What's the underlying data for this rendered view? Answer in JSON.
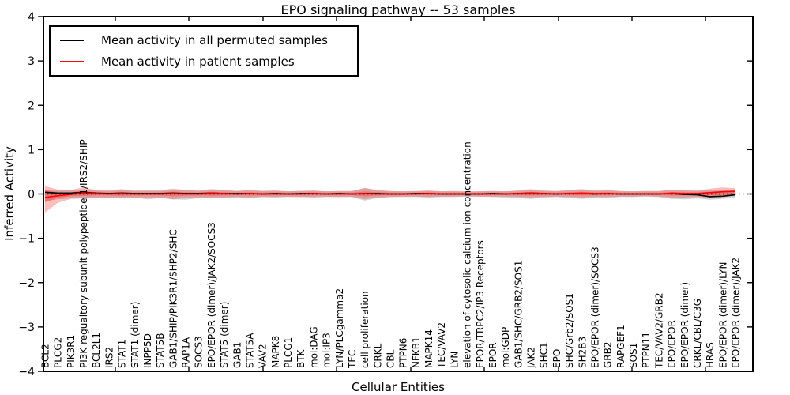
{
  "figure": {
    "background": "#ffffff"
  },
  "legend": {
    "position": "upper left",
    "entries": [
      {
        "label": "Mean activity in all permuted samples",
        "color": "#000000"
      },
      {
        "label": "Mean activity in patient samples",
        "color": "#ff0000"
      }
    ]
  },
  "chart_data": {
    "type": "line",
    "title": "EPO signaling pathway -- 53 samples",
    "xlabel": "Cellular Entities",
    "ylabel": "Inferred Activity",
    "ylim": [
      -4,
      4
    ],
    "yticks": [
      4,
      3,
      2,
      1,
      0,
      -1,
      -2,
      -3,
      -4
    ],
    "grid": false,
    "xtick_labels_inside_plot": true,
    "zero_line": {
      "style": "dotted",
      "color": "#000000",
      "value": 0
    },
    "entities": [
      "BCL2",
      "PLCG2",
      "PIK3R1",
      "PI3K regualtory subunit polypeptide 1/IRS2/SHIP",
      "BCL2L1",
      "IRS2",
      "STAT1",
      "STAT1 (dimer)",
      "INPP5D",
      "STAT5B",
      "GAB1/SHIP/PIK3R1/SHP2/SHC",
      "RAP1A",
      "SOCS3",
      "EPO/EPOR (dimer)/JAK2/SOCS3",
      "STAT5 (dimer)",
      "GAB1",
      "STAT5A",
      "VAV2",
      "MAPK8",
      "PLCG1",
      "BTK",
      "mol:DAG",
      "mol:IP3",
      "LYN/PLCgamma2",
      "TEC",
      "cell proliferation",
      "CRKL",
      "CBL",
      "PTPN6",
      "NFKB1",
      "MAPK14",
      "TEC/VAV2",
      "LYN",
      "elevation of cytosolic calcium ion concentration",
      "EPOR/TRPC2/IP3 Receptors",
      "EPOR",
      "mol:GDP",
      "GAB1/SHC/GRB2/SOS1",
      "JAK2",
      "SHC1",
      "EPO",
      "SHC/Grb2/SOS1",
      "SH2B3",
      "EPO/EPOR (dimer)/SOCS3",
      "GRB2",
      "RAPGEF1",
      "SOS1",
      "PTPN11",
      "TEC/VAV2/GRB2",
      "EPO/EPOR",
      "EPO/EPOR (dimer)",
      "CRKL/CBL/C3G",
      "HRAS",
      "EPO/EPOR (dimer)/LYN",
      "EPO/EPOR (dimer)/JAK2"
    ],
    "series": [
      {
        "name": "Mean activity in all permuted samples",
        "color": "#000000",
        "values": [
          0.04,
          0.02,
          0.02,
          0.04,
          0.02,
          0.01,
          0.02,
          0.01,
          0.01,
          0.01,
          0.02,
          0.01,
          0.01,
          0.02,
          0.01,
          0.01,
          0.01,
          0,
          0.01,
          0,
          0.01,
          0.01,
          0,
          0.01,
          0,
          0.01,
          0.01,
          0,
          0,
          0.01,
          0.01,
          0,
          0,
          0,
          0,
          0.01,
          0,
          0.01,
          0.02,
          0.01,
          0,
          0.01,
          0.01,
          0,
          0.01,
          0,
          0,
          0,
          0,
          0.01,
          -0.01,
          -0.02,
          -0.06,
          -0.05,
          -0.02
        ]
      },
      {
        "name": "Mean activity in patient samples",
        "color": "#ff0000",
        "values": [
          -0.08,
          -0.04,
          -0.01,
          0.03,
          0.01,
          0,
          0.01,
          0,
          0,
          0,
          0.01,
          0,
          0,
          0.02,
          0.01,
          0,
          0.01,
          0,
          0,
          0,
          0,
          0.01,
          0,
          0,
          0,
          0.01,
          0,
          0,
          0,
          0,
          0.01,
          0,
          0,
          0,
          0,
          0,
          0,
          0.01,
          0.02,
          0.01,
          0,
          0.01,
          0.02,
          0.01,
          0.01,
          0,
          0,
          0,
          0,
          0.02,
          0.01,
          0.01,
          0.03,
          0.05,
          0.06
        ]
      }
    ],
    "bands": [
      {
        "name": "permuted-samples-spread",
        "color": "rgba(110,110,110,0.30)",
        "upper": [
          0.1,
          0.08,
          0.08,
          0.1,
          0.08,
          0.07,
          0.09,
          0.07,
          0.08,
          0.07,
          0.1,
          0.09,
          0.07,
          0.09,
          0.08,
          0.07,
          0.08,
          0.07,
          0.07,
          0.06,
          0.07,
          0.07,
          0.06,
          0.06,
          0.06,
          0.14,
          0.08,
          0.06,
          0.06,
          0.06,
          0.07,
          0.06,
          0.06,
          0.05,
          0.06,
          0.06,
          0.06,
          0.07,
          0.09,
          0.07,
          0.06,
          0.08,
          0.09,
          0.07,
          0.08,
          0.06,
          0.06,
          0.06,
          0.06,
          0.09,
          0.08,
          0.07,
          0.09,
          0.1,
          0.09
        ],
        "lower": [
          -0.16,
          -0.12,
          -0.1,
          -0.09,
          -0.08,
          -0.08,
          -0.1,
          -0.08,
          -0.12,
          -0.09,
          -0.12,
          -0.13,
          -0.09,
          -0.1,
          -0.09,
          -0.08,
          -0.09,
          -0.07,
          -0.08,
          -0.07,
          -0.07,
          -0.08,
          -0.07,
          -0.07,
          -0.07,
          -0.15,
          -0.09,
          -0.07,
          -0.07,
          -0.07,
          -0.08,
          -0.07,
          -0.07,
          -0.06,
          -0.06,
          -0.07,
          -0.08,
          -0.09,
          -0.11,
          -0.08,
          -0.07,
          -0.09,
          -0.11,
          -0.08,
          -0.09,
          -0.07,
          -0.07,
          -0.06,
          -0.07,
          -0.11,
          -0.12,
          -0.1,
          -0.13,
          -0.11,
          -0.08
        ]
      },
      {
        "name": "patient-samples-spread-outer",
        "color": "rgba(255,40,40,0.30)",
        "upper": [
          0.18,
          0.1,
          0.09,
          0.15,
          0.09,
          0.08,
          0.11,
          0.08,
          0.07,
          0.08,
          0.12,
          0.09,
          0.08,
          0.11,
          0.09,
          0.07,
          0.09,
          0.07,
          0.08,
          0.06,
          0.07,
          0.08,
          0.06,
          0.07,
          0.07,
          0.13,
          0.09,
          0.07,
          0.06,
          0.07,
          0.08,
          0.06,
          0.07,
          0.06,
          0.06,
          0.07,
          0.06,
          0.08,
          0.11,
          0.08,
          0.07,
          0.09,
          0.11,
          0.08,
          0.09,
          0.07,
          0.06,
          0.07,
          0.07,
          0.1,
          0.09,
          0.08,
          0.12,
          0.15,
          0.13
        ],
        "lower": [
          -0.42,
          -0.2,
          -0.11,
          -0.1,
          -0.08,
          -0.08,
          -0.1,
          -0.08,
          -0.08,
          -0.08,
          -0.12,
          -0.09,
          -0.08,
          -0.09,
          -0.08,
          -0.07,
          -0.08,
          -0.07,
          -0.07,
          -0.06,
          -0.07,
          -0.07,
          -0.06,
          -0.07,
          -0.06,
          -0.12,
          -0.08,
          -0.07,
          -0.06,
          -0.06,
          -0.07,
          -0.06,
          -0.06,
          -0.05,
          -0.06,
          -0.06,
          -0.06,
          -0.07,
          -0.08,
          -0.07,
          -0.06,
          -0.07,
          -0.08,
          -0.07,
          -0.07,
          -0.06,
          -0.06,
          -0.05,
          -0.06,
          -0.08,
          -0.08,
          -0.07,
          -0.08,
          -0.06,
          -0.04
        ]
      },
      {
        "name": "patient-samples-spread-inner",
        "color": "rgba(255,40,40,0.35)",
        "scale_of": "patient-samples-spread-outer",
        "scale": 0.45
      }
    ]
  }
}
